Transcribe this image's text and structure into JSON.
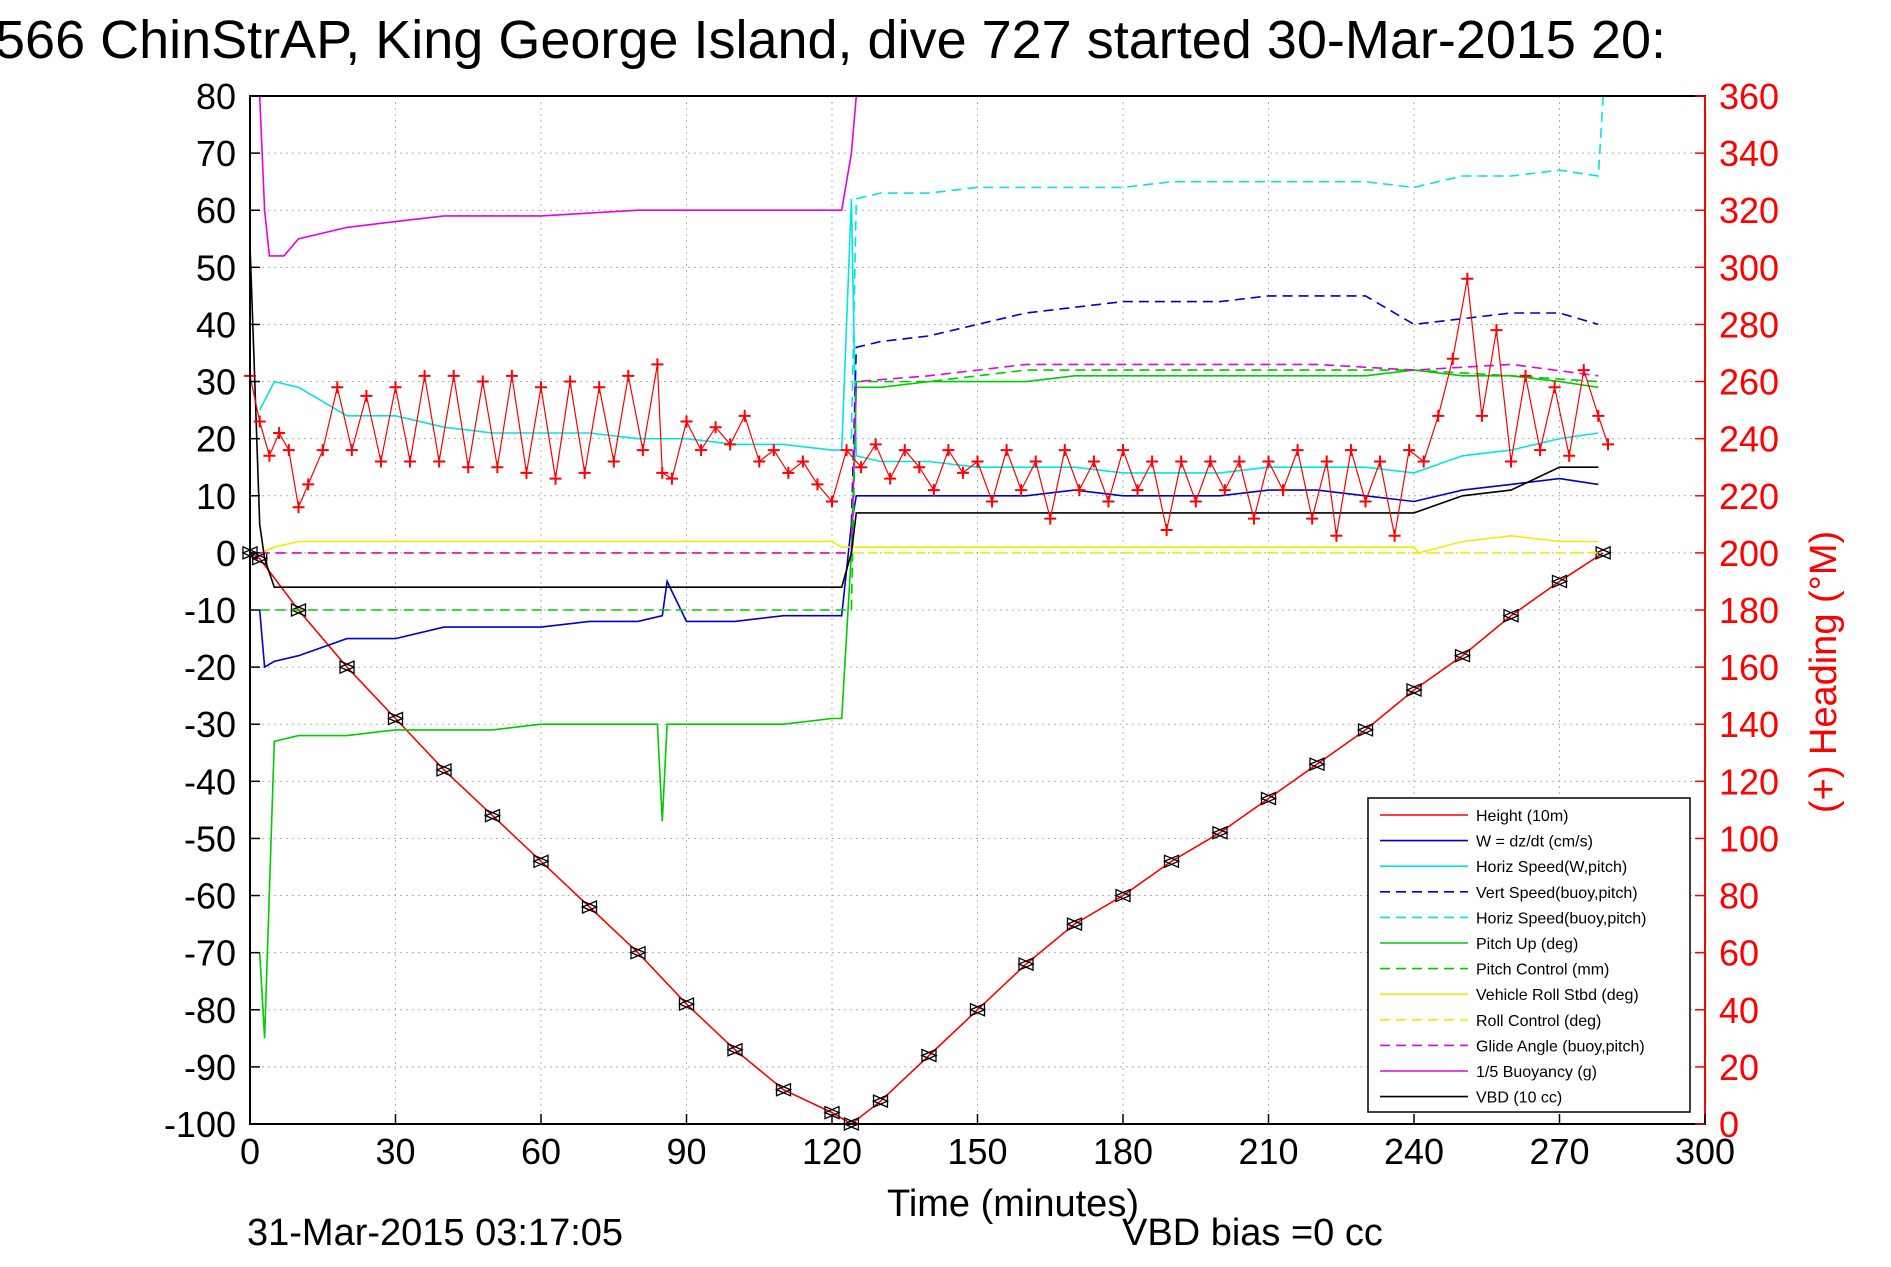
{
  "chart_data": {
    "type": "line",
    "title": "566 ChinStrAP, King George Island, dive 727 started 30-Mar-2015 20:",
    "xlabel": "Time (minutes)",
    "ylabel_right": "(+) Heading (°M)",
    "footer_left": "31-Mar-2015 03:17:05",
    "footer_right": "VBD bias =0 cc",
    "xlim": [
      0,
      300
    ],
    "ylim_left": [
      -100,
      80
    ],
    "ylim_right": [
      0,
      360
    ],
    "x_ticks": [
      0,
      30,
      60,
      90,
      120,
      150,
      180,
      210,
      240,
      270,
      300
    ],
    "y_ticks_left": [
      80,
      70,
      60,
      50,
      40,
      30,
      20,
      10,
      0,
      -10,
      -20,
      -30,
      -40,
      -50,
      -60,
      -70,
      -80,
      -90,
      -100
    ],
    "y_ticks_right": [
      360,
      340,
      320,
      300,
      280,
      260,
      240,
      220,
      200,
      180,
      160,
      140,
      120,
      100,
      80,
      60,
      40,
      20,
      0
    ],
    "grid": true,
    "legend_position": "bottom-right",
    "colors": {
      "right_axis": "#ff0000",
      "axes": "#000000",
      "grid": "#b0b0b0"
    },
    "series": [
      {
        "name": "Height (10m)",
        "color": "#ff0000",
        "style": "solid",
        "marker": "triangle",
        "x": [
          0,
          2,
          10,
          20,
          30,
          40,
          50,
          60,
          70,
          80,
          90,
          100,
          110,
          120,
          124,
          130,
          140,
          150,
          160,
          170,
          180,
          190,
          200,
          210,
          220,
          230,
          240,
          250,
          260,
          270,
          279
        ],
        "y": [
          0,
          -1,
          -10,
          -20,
          -29,
          -38,
          -46,
          -54,
          -62,
          -70,
          -79,
          -87,
          -94,
          -98,
          -100,
          -96,
          -88,
          -80,
          -72,
          -65,
          -60,
          -54,
          -49,
          -43,
          -37,
          -31,
          -24,
          -18,
          -11,
          -5,
          0
        ]
      },
      {
        "name": "W = dz/dt (cm/s)",
        "color": "#0000cc",
        "style": "solid",
        "x": [
          2,
          3,
          5,
          10,
          20,
          30,
          40,
          50,
          60,
          70,
          80,
          85,
          86,
          90,
          100,
          110,
          122,
          124,
          125,
          130,
          140,
          150,
          160,
          170,
          180,
          190,
          200,
          210,
          220,
          230,
          240,
          250,
          260,
          270,
          278
        ],
        "y": [
          -10,
          -20,
          -19,
          -18,
          -15,
          -15,
          -13,
          -13,
          -13,
          -12,
          -12,
          -11,
          -5,
          -12,
          -12,
          -11,
          -11,
          5,
          10,
          10,
          10,
          10,
          10,
          11,
          10,
          10,
          10,
          11,
          11,
          10,
          9,
          11,
          12,
          13,
          12
        ]
      },
      {
        "name": "Horiz Speed(W,pitch)",
        "color": "#00e5e5",
        "style": "solid",
        "x": [
          2,
          5,
          10,
          20,
          30,
          40,
          50,
          60,
          70,
          80,
          90,
          100,
          110,
          120,
          122,
          124,
          125,
          130,
          140,
          150,
          160,
          170,
          180,
          190,
          200,
          210,
          220,
          230,
          240,
          250,
          260,
          270,
          278
        ],
        "y": [
          25,
          30,
          29,
          24,
          24,
          22,
          21,
          21,
          21,
          20,
          20,
          19,
          19,
          18,
          18,
          62,
          17,
          16,
          16,
          15,
          15,
          15,
          14,
          14,
          14,
          15,
          15,
          15,
          14,
          17,
          18,
          20,
          21
        ]
      },
      {
        "name": "Vert Speed(buoy,pitch)",
        "color": "#0000cc",
        "style": "dashed",
        "x": [
          124,
          125,
          130,
          140,
          150,
          160,
          170,
          180,
          190,
          200,
          210,
          220,
          230,
          240,
          250,
          260,
          270,
          278
        ],
        "y": [
          5,
          36,
          37,
          38,
          40,
          42,
          43,
          44,
          44,
          44,
          45,
          45,
          45,
          40,
          41,
          42,
          42,
          40
        ]
      },
      {
        "name": "Horiz Speed(buoy,pitch)",
        "color": "#00e5e5",
        "style": "dashed",
        "x": [
          124,
          125,
          130,
          140,
          150,
          160,
          170,
          180,
          190,
          200,
          210,
          220,
          230,
          240,
          250,
          260,
          270,
          278,
          279
        ],
        "y": [
          20,
          62,
          63,
          63,
          64,
          64,
          64,
          64,
          65,
          65,
          65,
          65,
          65,
          64,
          66,
          66,
          67,
          66,
          80
        ]
      },
      {
        "name": "Pitch Up (deg)",
        "color": "#00cc00",
        "style": "solid",
        "x": [
          2,
          3,
          5,
          10,
          20,
          30,
          40,
          50,
          60,
          70,
          80,
          84,
          85,
          86,
          90,
          100,
          110,
          120,
          122,
          124,
          125,
          130,
          140,
          150,
          160,
          170,
          180,
          190,
          200,
          210,
          220,
          230,
          240,
          250,
          260,
          270,
          278
        ],
        "y": [
          -70,
          -85,
          -33,
          -32,
          -32,
          -31,
          -31,
          -31,
          -30,
          -30,
          -30,
          -30,
          -47,
          -30,
          -30,
          -30,
          -30,
          -29,
          -29,
          0,
          29,
          29,
          30,
          30,
          30,
          31,
          31,
          31,
          31,
          31,
          31,
          31,
          32,
          31,
          31,
          30,
          29
        ]
      },
      {
        "name": "Pitch Control (mm)",
        "color": "#00cc00",
        "style": "dashed",
        "x": [
          2,
          5,
          20,
          40,
          60,
          80,
          100,
          120,
          124,
          125,
          140,
          160,
          180,
          200,
          220,
          240,
          260,
          278
        ],
        "y": [
          -10,
          -10,
          -10,
          -10,
          -10,
          -10,
          -10,
          -10,
          -10,
          30,
          30,
          32,
          32,
          32,
          32,
          32,
          31,
          30
        ]
      },
      {
        "name": "Vehicle Roll Stbd (deg)",
        "color": "#eeee00",
        "style": "solid",
        "x": [
          2,
          5,
          10,
          20,
          30,
          40,
          60,
          80,
          100,
          120,
          122,
          124,
          140,
          160,
          180,
          200,
          220,
          240,
          241,
          250,
          260,
          270,
          278
        ],
        "y": [
          0,
          1,
          2,
          2,
          2,
          2,
          2,
          2,
          2,
          2,
          1,
          1,
          1,
          1,
          1,
          1,
          1,
          1,
          0,
          2,
          3,
          2,
          2
        ]
      },
      {
        "name": "Roll Control (deg)",
        "color": "#eeee00",
        "style": "dashed",
        "x": [
          2,
          20,
          40,
          60,
          80,
          100,
          120,
          124,
          140,
          160,
          180,
          200,
          220,
          240,
          260,
          278
        ],
        "y": [
          0,
          0,
          0,
          0,
          0,
          0,
          0,
          0,
          0,
          0,
          0,
          0,
          0,
          0,
          0,
          0
        ]
      },
      {
        "name": "Glide Angle (buoy,pitch)",
        "color": "#e600e6",
        "style": "dashed",
        "x": [
          2,
          20,
          40,
          60,
          80,
          100,
          122,
          124,
          125,
          140,
          160,
          180,
          200,
          220,
          240,
          260,
          278
        ],
        "y": [
          0,
          0,
          0,
          0,
          0,
          0,
          0,
          0,
          30,
          31,
          33,
          33,
          33,
          33,
          32,
          33,
          31
        ]
      },
      {
        "name": "1/5 Buoyancy (g)",
        "color": "#e600e6",
        "style": "solid",
        "x": [
          2,
          3,
          4,
          7,
          10,
          20,
          30,
          40,
          60,
          80,
          100,
          122,
          124,
          125
        ],
        "y": [
          80,
          60,
          52,
          52,
          55,
          57,
          58,
          59,
          59,
          60,
          60,
          60,
          70,
          80
        ]
      },
      {
        "name": "VBD (10 cc)",
        "color": "#000000",
        "style": "solid",
        "x": [
          0,
          1,
          2,
          3,
          5,
          20,
          40,
          60,
          80,
          100,
          122,
          124,
          125,
          140,
          160,
          180,
          200,
          220,
          240,
          250,
          260,
          265,
          270,
          278
        ],
        "y": [
          54,
          30,
          5,
          -1,
          -6,
          -6,
          -6,
          -6,
          -6,
          -6,
          -6,
          0,
          7,
          7,
          7,
          7,
          7,
          7,
          7,
          10,
          11,
          13,
          15,
          15
        ]
      }
    ],
    "heading_series": {
      "name": "Heading",
      "axis": "right",
      "color": "#ff0000",
      "marker": "plus",
      "x": [
        0,
        2,
        4,
        6,
        8,
        10,
        12,
        15,
        18,
        21,
        24,
        27,
        30,
        33,
        36,
        39,
        42,
        45,
        48,
        51,
        54,
        57,
        60,
        63,
        66,
        69,
        72,
        75,
        78,
        81,
        84,
        85,
        87,
        90,
        93,
        96,
        99,
        102,
        105,
        108,
        111,
        114,
        117,
        120,
        123,
        126,
        129,
        132,
        135,
        138,
        141,
        144,
        147,
        150,
        153,
        156,
        159,
        162,
        165,
        168,
        171,
        174,
        177,
        180,
        183,
        186,
        189,
        192,
        195,
        198,
        201,
        204,
        207,
        210,
        213,
        216,
        219,
        222,
        224,
        227,
        230,
        233,
        236,
        239,
        242,
        245,
        248,
        251,
        254,
        257,
        260,
        263,
        266,
        269,
        272,
        275,
        278,
        280
      ],
      "y": [
        262,
        246,
        234,
        242,
        236,
        216,
        224,
        236,
        258,
        236,
        255,
        232,
        258,
        232,
        262,
        232,
        262,
        230,
        260,
        230,
        262,
        228,
        258,
        226,
        260,
        228,
        258,
        232,
        262,
        236,
        266,
        228,
        226,
        246,
        236,
        244,
        238,
        248,
        232,
        236,
        228,
        232,
        224,
        218,
        236,
        230,
        238,
        226,
        236,
        230,
        222,
        236,
        228,
        232,
        218,
        236,
        222,
        232,
        212,
        236,
        222,
        232,
        218,
        236,
        222,
        232,
        208,
        232,
        218,
        232,
        222,
        232,
        212,
        232,
        222,
        236,
        212,
        232,
        206,
        236,
        218,
        232,
        206,
        236,
        232,
        248,
        268,
        296,
        248,
        278,
        232,
        262,
        236,
        258,
        234,
        264,
        248,
        238
      ]
    }
  }
}
